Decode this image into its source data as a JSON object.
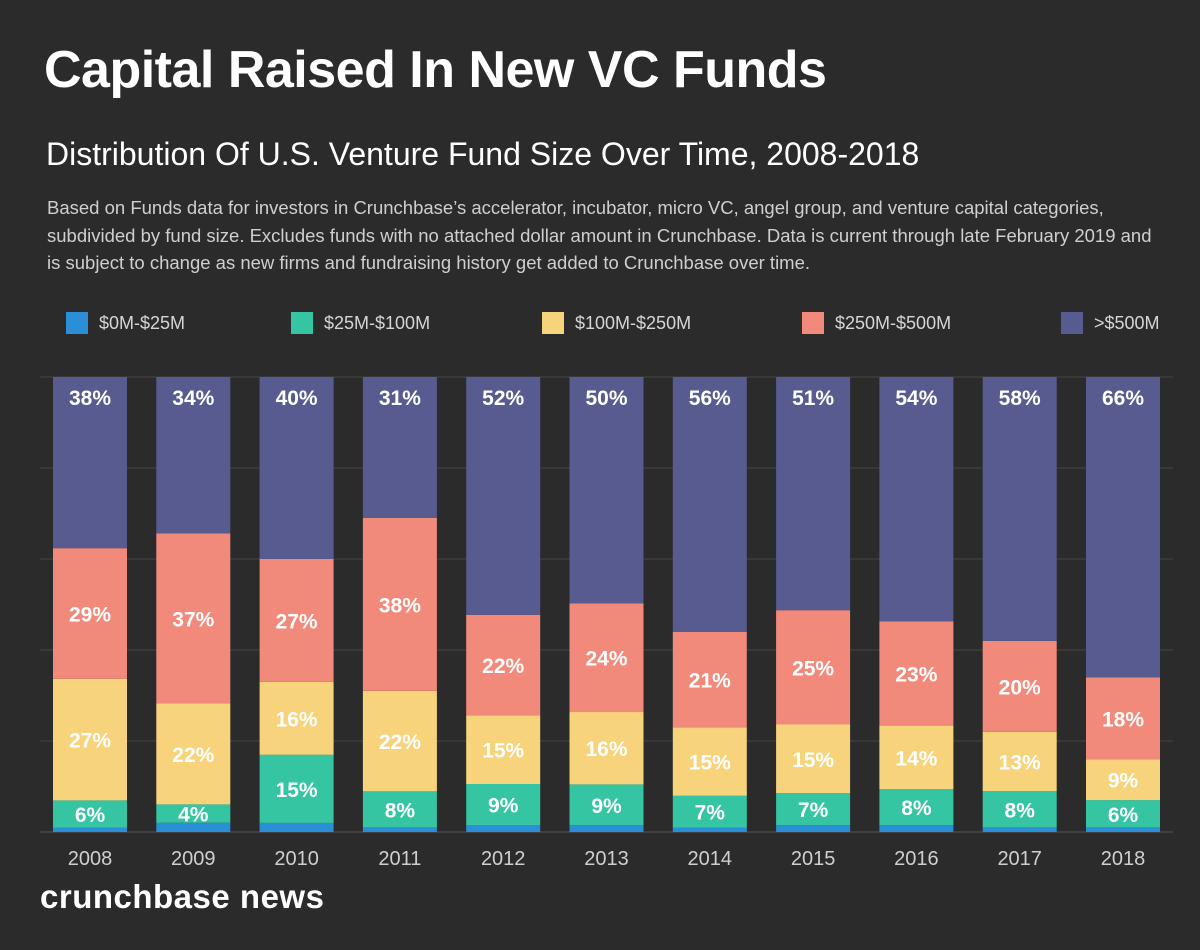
{
  "header": {
    "title": "Capital Raised In New VC Funds",
    "subtitle": "Distribution Of U.S. Venture Fund Size Over Time, 2008-2018",
    "description": "Based on Funds data for investors in Crunchbase’s accelerator, incubator, micro VC, angel group, and venture capital categories, subdivided by fund size. Excludes funds with no attached dollar amount in Crunchbase. Data is current through late February 2019 and is subject to change as new firms and fundraising history get added to Crunchbase over time."
  },
  "brand": "crunchbase news",
  "colors": {
    "background": "#2b2b2b",
    "0-25": "#2a8fd6",
    "25-100": "#35c5a2",
    "100-250": "#f7d47c",
    "250-500": "#f28a7b",
    "500plus": "#575b8f"
  },
  "chart_data": {
    "type": "bar",
    "stacked": true,
    "normalized": true,
    "categories": [
      "2008",
      "2009",
      "2010",
      "2011",
      "2012",
      "2013",
      "2014",
      "2015",
      "2016",
      "2017",
      "2018"
    ],
    "ylim": [
      0,
      100
    ],
    "grid": true,
    "legend_position": "top",
    "series": [
      {
        "name": "$0M-$25M",
        "color": "#2a8fd6",
        "values": [
          1,
          2,
          2,
          1,
          1.5,
          1.5,
          1,
          1.5,
          1.5,
          1,
          1
        ],
        "labels": [
          "",
          "",
          "",
          "",
          "",
          "",
          "",
          "",
          "",
          "",
          ""
        ]
      },
      {
        "name": "$25M-$100M",
        "color": "#35c5a2",
        "values": [
          6,
          4,
          15,
          8,
          9,
          9,
          7,
          7,
          8,
          8,
          6
        ],
        "labels": [
          "6%",
          "4%",
          "15%",
          "8%",
          "9%",
          "9%",
          "7%",
          "7%",
          "8%",
          "8%",
          "6%"
        ]
      },
      {
        "name": "$100M-$250M",
        "color": "#f7d47c",
        "values": [
          27,
          22,
          16,
          22,
          15,
          16,
          15,
          15,
          14,
          13,
          9
        ],
        "labels": [
          "27%",
          "22%",
          "16%",
          "22%",
          "15%",
          "16%",
          "15%",
          "15%",
          "14%",
          "13%",
          "9%"
        ]
      },
      {
        "name": "$250M-$500M",
        "color": "#f28a7b",
        "values": [
          29,
          37,
          27,
          38,
          22,
          24,
          21,
          25,
          23,
          20,
          18
        ],
        "labels": [
          "29%",
          "37%",
          "27%",
          "38%",
          "22%",
          "24%",
          "21%",
          "25%",
          "23%",
          "20%",
          "18%"
        ]
      },
      {
        "name": ">$500M",
        "color": "#575b8f",
        "values": [
          38,
          34,
          40,
          31,
          52,
          50,
          56,
          51,
          54,
          58,
          66
        ],
        "labels": [
          "38%",
          "34%",
          "40%",
          "31%",
          "52%",
          "50%",
          "56%",
          "51%",
          "54%",
          "58%",
          "66%"
        ]
      }
    ]
  }
}
